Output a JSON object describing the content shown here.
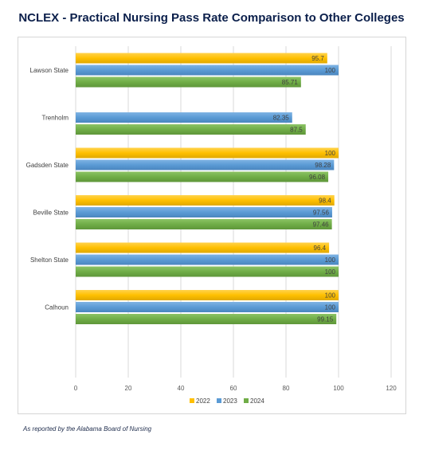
{
  "title": "NCLEX - Practical Nursing Pass Rate Comparison to Other Colleges",
  "footnote": "As reported by the Alabama Board of Nursing",
  "chart_data": {
    "type": "bar",
    "orientation": "horizontal",
    "categories": [
      "Lawson State",
      "Trenholm",
      "Gadsden State",
      "Beville State",
      "Shelton State",
      "Calhoun"
    ],
    "series": [
      {
        "name": "2022",
        "color": "#ffc000",
        "values": [
          95.7,
          null,
          100,
          98.4,
          96.4,
          100
        ],
        "labels": [
          "95.7",
          "",
          "100",
          "98.4",
          "96.4",
          "100"
        ]
      },
      {
        "name": "2023",
        "color": "#5b9bd5",
        "values": [
          100,
          82.35,
          98.28,
          97.56,
          100,
          100
        ],
        "labels": [
          "100",
          "82.35",
          "98.28",
          "97.56",
          "100",
          "100"
        ]
      },
      {
        "name": "2024",
        "color": "#70ad47",
        "values": [
          85.71,
          87.5,
          96.08,
          97.46,
          100,
          99.15
        ],
        "labels": [
          "85.71",
          "87.5",
          "96.08",
          "97.46",
          "100",
          "99.15"
        ]
      }
    ],
    "xlim": [
      0,
      120
    ],
    "xticks": [
      0,
      20,
      40,
      60,
      80,
      100,
      120
    ],
    "grid": true,
    "legend": "bottom"
  }
}
